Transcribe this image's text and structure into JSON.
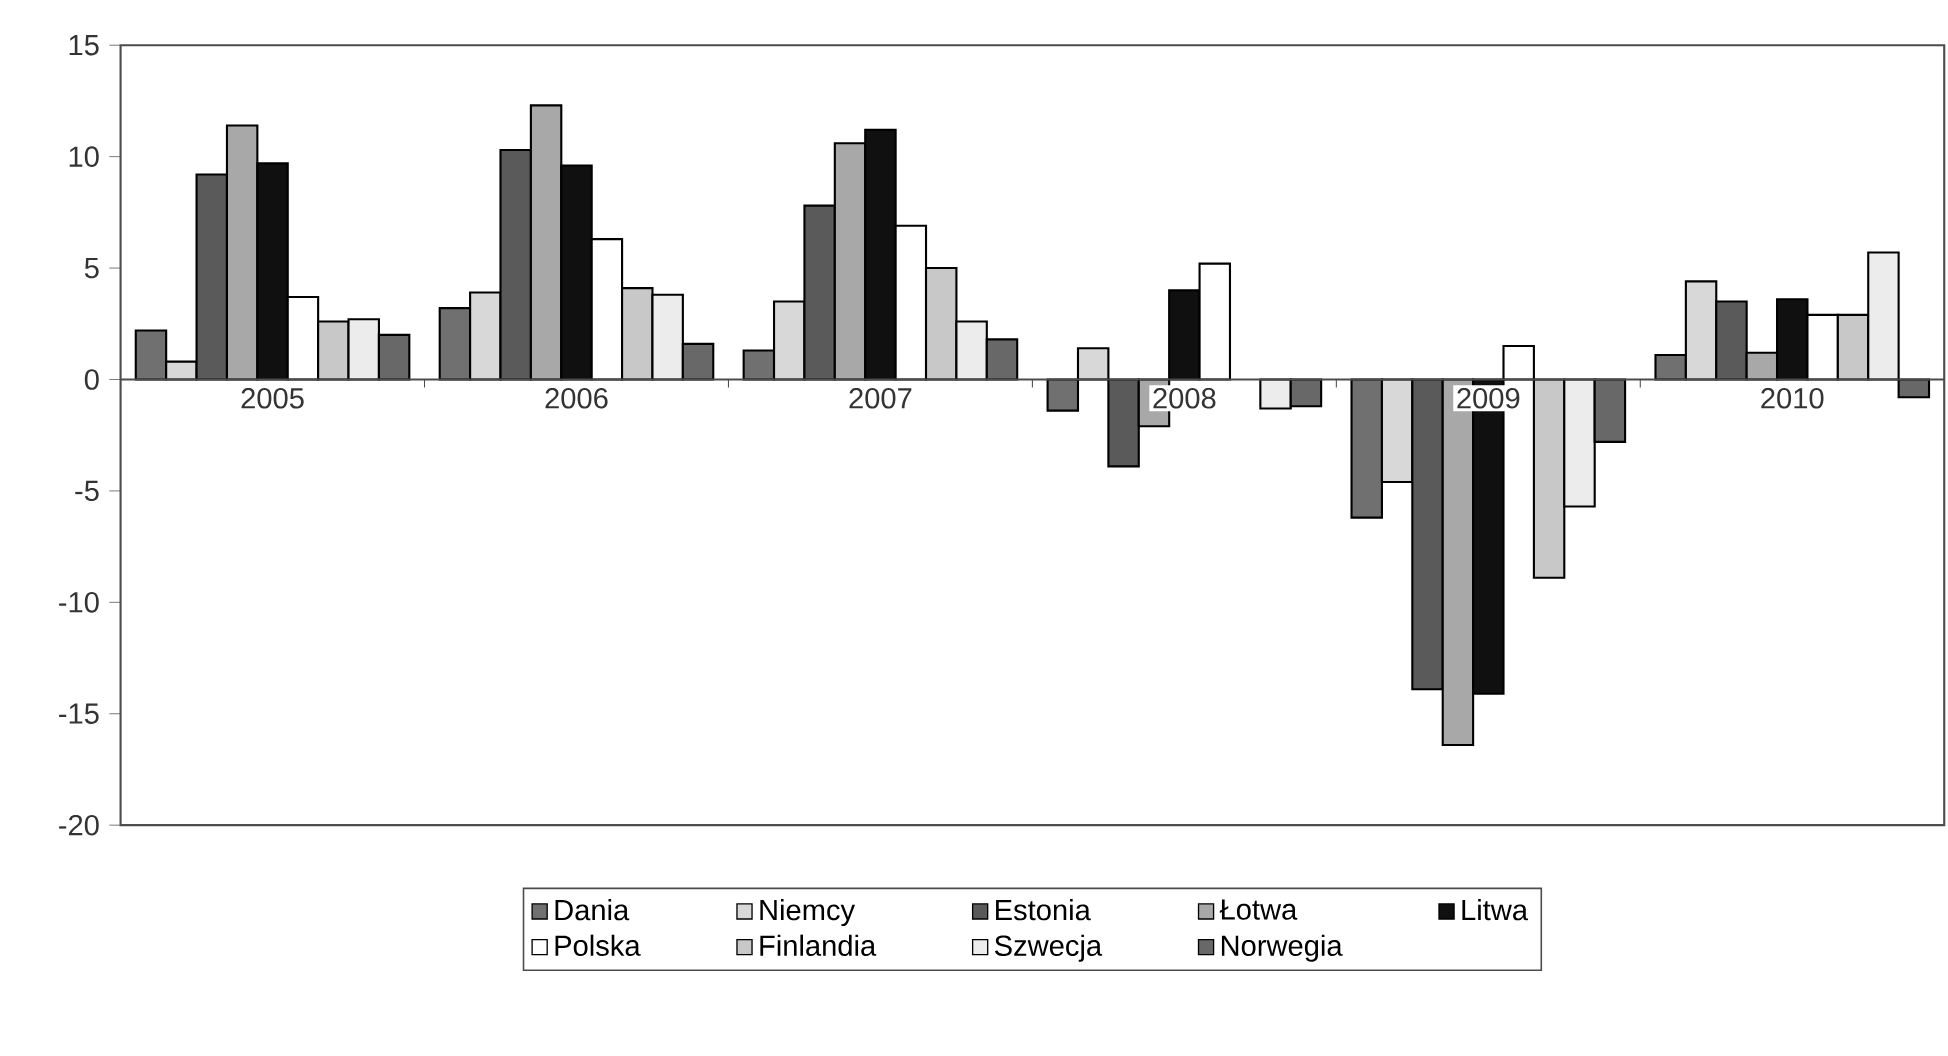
{
  "chart_data": {
    "type": "bar",
    "categories": [
      "2005",
      "2006",
      "2007",
      "2008",
      "2009",
      "2010"
    ],
    "series": [
      {
        "name": "Dania",
        "color": "#707070",
        "values": [
          2.2,
          3.2,
          1.3,
          -1.4,
          -6.2,
          1.1
        ]
      },
      {
        "name": "Niemcy",
        "color": "#d8d8d8",
        "values": [
          0.8,
          3.9,
          3.5,
          1.4,
          -4.6,
          4.4
        ]
      },
      {
        "name": "Estonia",
        "color": "#5a5a5a",
        "values": [
          9.2,
          10.3,
          7.8,
          -3.9,
          -13.9,
          3.5
        ]
      },
      {
        "name": "Łotwa",
        "color": "#a8a8a8",
        "values": [
          11.4,
          12.3,
          10.6,
          -2.1,
          -16.4,
          1.2
        ]
      },
      {
        "name": "Litwa",
        "color": "#101010",
        "values": [
          9.7,
          9.6,
          11.2,
          4.0,
          -14.1,
          3.6
        ]
      },
      {
        "name": "Polska",
        "color": "#ffffff",
        "values": [
          3.7,
          6.3,
          6.9,
          5.2,
          1.5,
          2.9
        ]
      },
      {
        "name": "Finlandia",
        "color": "#c8c8c8",
        "values": [
          2.6,
          4.1,
          5.0,
          null,
          -8.9,
          2.9
        ]
      },
      {
        "name": "Szwecja",
        "color": "#ececec",
        "values": [
          2.7,
          3.8,
          2.6,
          -1.3,
          -5.7,
          5.7
        ]
      },
      {
        "name": "Norwegia",
        "color": "#686868",
        "values": [
          2.0,
          1.6,
          1.8,
          -1.2,
          -2.8,
          -0.8
        ]
      }
    ],
    "ylim": [
      -20,
      15
    ],
    "yticks": [
      -20,
      -15,
      -10,
      -5,
      0,
      5,
      10,
      15
    ],
    "grid": false,
    "legend": "bottom"
  }
}
